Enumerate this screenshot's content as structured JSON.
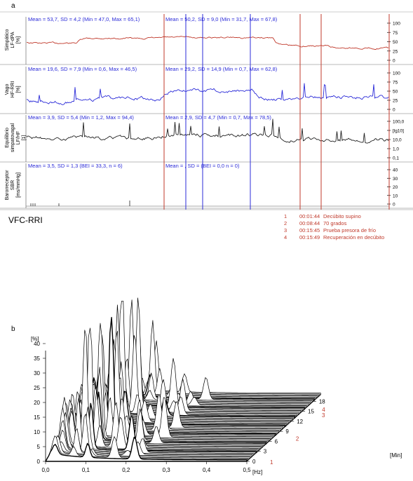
{
  "panel_labels": {
    "a": "a",
    "b": "b"
  },
  "chart_data": [
    {
      "type": "line",
      "section": "a",
      "tracks": [
        {
          "title": "Simpático",
          "subtitle": "LF-dPA",
          "unit": "[%]",
          "left_stats": "Mean = 53,7, SD = 4,2 (Min = 47,0, Max = 65,1)",
          "right_stats": "Mean = 50,2, SD = 9,0 (Min = 31,7, Max = 67,8)",
          "yticks": [
            "100",
            "75",
            "50",
            "25",
            "0"
          ],
          "color": "#c0392b",
          "level": 0.5
        },
        {
          "title": "Vago",
          "subtitle": "HF-RRI",
          "unit": "[%]",
          "left_stats": "Mean = 19,6, SD = 7,9 (Min = 0,6, Max = 46,5)",
          "right_stats": "Mean = 29,2, SD = 14,9 (Min = 0,7, Max = 62,8)",
          "yticks": [
            "100",
            "75",
            "50",
            "25",
            "0"
          ],
          "color": "#2b2bd8",
          "level": 0.25
        },
        {
          "title": "Equilibrio",
          "subtitle": "simpatovagal",
          "subtitle2": "LF/HF",
          "unit": "[1]",
          "left_stats": "Mean = 3,9, SD = 5,4 (Min = 1,2, Max = 94,4)",
          "right_stats": "Mean = 2,9, SD = 4,7 (Min = 0,7, Max = 78,5)",
          "yticks": [
            "100,0",
            "[lg10]",
            "10,0",
            "1,0",
            "0,1"
          ],
          "color": "#222222",
          "level": 0.55
        },
        {
          "title": "Barorreceptor",
          "subtitle": "SBR",
          "unit": "[ms/mmHg]",
          "left_stats": "Mean = 3,5, SD = 1,3 (BEI = 33,3, n = 6)",
          "right_stats": "Mean = , SD = (BEI = 0,0 n = 0)",
          "yticks": [
            "40",
            "30",
            "20",
            "10",
            "0"
          ],
          "color": "#222222",
          "level": 0.0
        }
      ],
      "events": [
        {
          "num": "1",
          "time": "00:01:44",
          "label": "Decúbito supino"
        },
        {
          "num": "2",
          "time": "00:08:44",
          "label": "70 grados"
        },
        {
          "num": "3",
          "time": "00:15:45",
          "label": "Prueba presora de frío"
        },
        {
          "num": "4",
          "time": "00:15:49",
          "label": "Recuperación en decúbito"
        }
      ]
    },
    {
      "type": "area",
      "section": "b",
      "title": "VFC-RRI",
      "y_unit": "[%]",
      "yticks": [
        "40",
        "35",
        "30",
        "25",
        "20",
        "15",
        "10",
        "5",
        "0"
      ],
      "ylim": [
        0,
        40
      ],
      "x_unit": "[Hz]",
      "xticks": [
        "0,0",
        "0,1",
        "0,2",
        "0,3",
        "0,4",
        "0,5"
      ],
      "xlim": [
        0,
        0.5
      ],
      "z_unit": "[Min]",
      "zticks": [
        "0",
        "3",
        "6",
        "9",
        "12",
        "15",
        "18"
      ],
      "zlim": [
        0,
        20
      ],
      "event_markers": [
        {
          "label": "1",
          "min": 1.7
        },
        {
          "label": "2",
          "min": 8.7
        },
        {
          "label": "3",
          "min": 15.75
        },
        {
          "label": "4",
          "min": 15.8
        }
      ],
      "n_spectra": 70
    }
  ]
}
